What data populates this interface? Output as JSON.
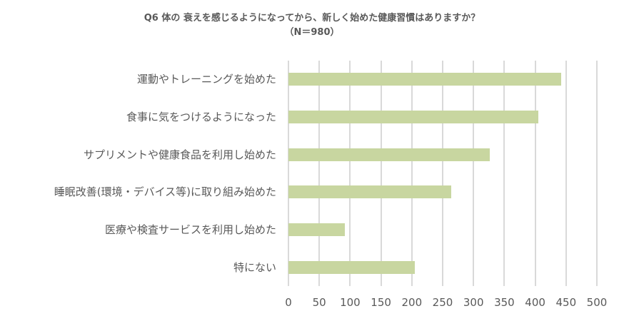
{
  "chart_data": {
    "type": "bar",
    "orientation": "horizontal",
    "title": "Q6 体の 衰えを感じるようになってから、新しく始めた健康習慣はありますか？",
    "subtitle": "（N＝980）",
    "categories": [
      "運動やトレーニングを始めた",
      "食事に気をつけるようになった",
      "サプリメントや健康食品を利用し始めた",
      "睡眠改善(環境・デバイス等)に取り組み始めた",
      "医療や検査サービスを利用し始めた",
      "特にない"
    ],
    "values": [
      442,
      405,
      326,
      264,
      91,
      205
    ],
    "xlabel": "",
    "ylabel": "",
    "xlim": [
      0,
      500
    ],
    "xticks": [
      "0",
      "50",
      "100",
      "150",
      "200",
      "250",
      "300",
      "350",
      "400",
      "450",
      "500"
    ],
    "grid": "vertical",
    "legend": "none",
    "bar_color": "#c8d6a0",
    "grid_color": "#d9d9d9",
    "text_color": "#595959"
  }
}
